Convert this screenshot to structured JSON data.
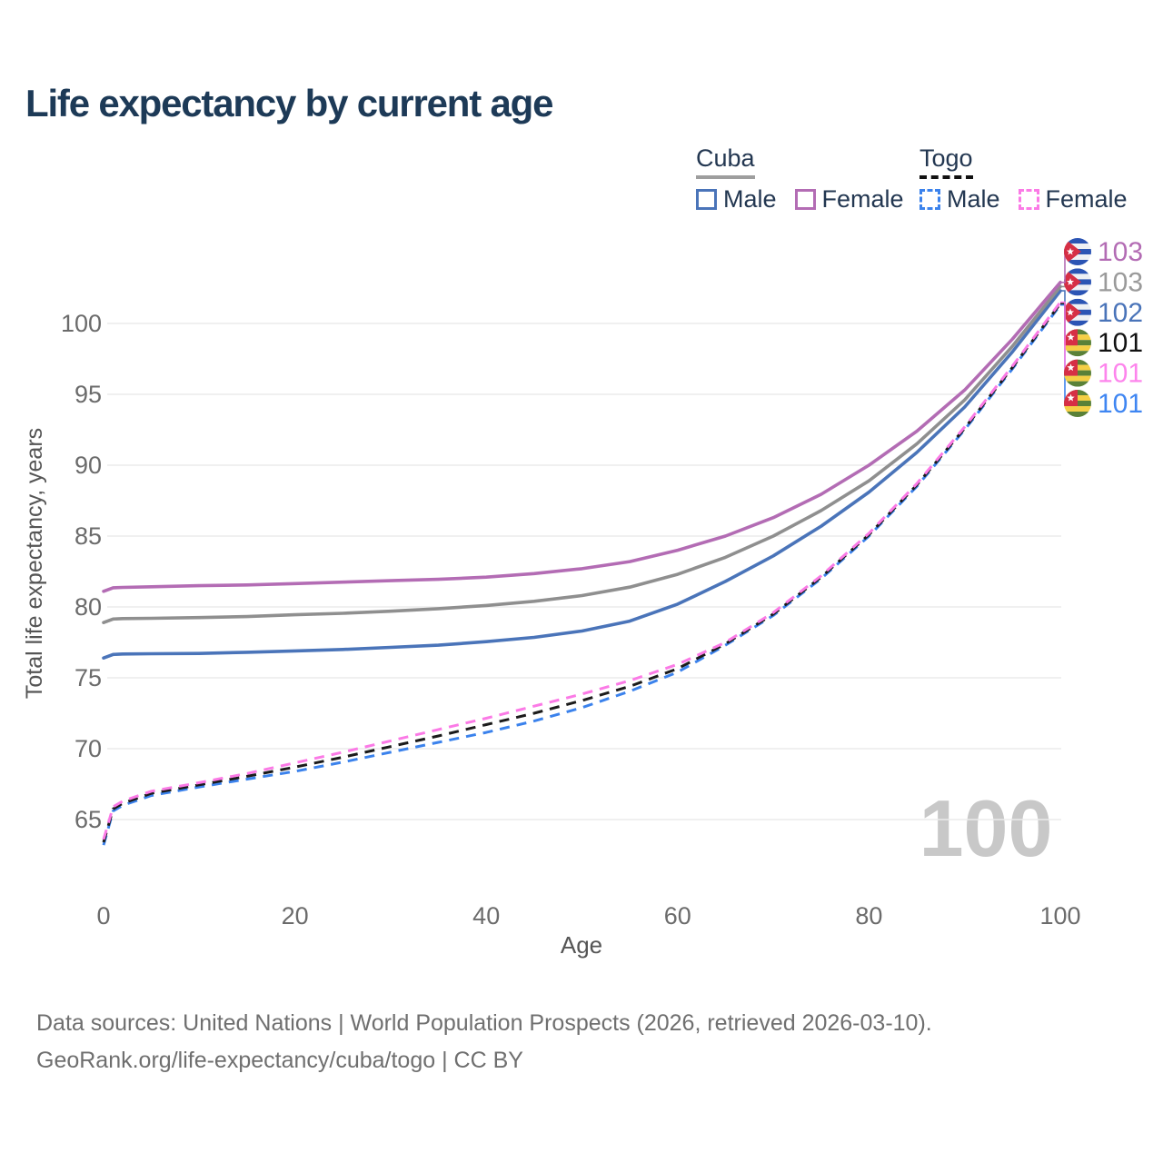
{
  "title": "Life expectancy by current age",
  "watermark": "100",
  "legend": {
    "groups": [
      {
        "label": "Cuba",
        "style": "solid",
        "underline_color": "#9e9e9e",
        "items": [
          {
            "label": "Male",
            "color": "#4a74b9",
            "dashed": false
          },
          {
            "label": "Female",
            "color": "#b36cb4",
            "dashed": false
          }
        ]
      },
      {
        "label": "Togo",
        "style": "dashed",
        "underline_color": "#111111",
        "items": [
          {
            "label": "Male",
            "color": "#3b82ec",
            "dashed": true
          },
          {
            "label": "Female",
            "color": "#fb7ae6",
            "dashed": true
          }
        ]
      }
    ]
  },
  "footer": {
    "line1": "Data sources: United Nations | World Population Prospects (2026, retrieved 2026-03-10).",
    "line2": "GeoRank.org/life-expectancy/cuba/togo | CC BY"
  },
  "chart_data": {
    "type": "line",
    "title": "Life expectancy by current age",
    "xlabel": "Age",
    "ylabel": "Total life expectancy, years",
    "xlim": [
      0,
      100
    ],
    "ylim": [
      62,
      104
    ],
    "x_ticks": [
      0,
      20,
      40,
      60,
      80,
      100
    ],
    "y_ticks": [
      65,
      70,
      75,
      80,
      85,
      90,
      95,
      100
    ],
    "grid": "horizontal",
    "legend_position": "top-right",
    "colors": {
      "grid": "#ebebeb",
      "axis": "#6b6b6b",
      "axis_title": "#555555",
      "watermark": "#c8c8c8"
    },
    "flag_colors": {
      "cuba": {
        "stripe_a": "#2b54b4",
        "stripe_b": "#eef0f4",
        "triangle": "#d62f45",
        "star": "#ffffff"
      },
      "togo": {
        "stripe_a": "#5a8138",
        "stripe_b": "#f4cf45",
        "canton": "#d62f45",
        "star": "#ffffff"
      }
    },
    "ages": [
      0,
      1,
      2,
      5,
      10,
      15,
      20,
      25,
      30,
      35,
      40,
      45,
      50,
      55,
      60,
      65,
      70,
      75,
      80,
      85,
      90,
      95,
      100
    ],
    "series": [
      {
        "key": "cuba_male",
        "country": "Cuba",
        "sex": "Male",
        "color": "#4a74b9",
        "dash": false,
        "flag": "cuba",
        "row": 2,
        "end_label": "102",
        "label_color": "#4a74b9",
        "values": [
          76.4,
          76.65,
          76.68,
          76.7,
          76.72,
          76.8,
          76.9,
          77.0,
          77.15,
          77.3,
          77.55,
          77.85,
          78.3,
          79.0,
          80.2,
          81.8,
          83.6,
          85.7,
          88.1,
          90.9,
          94.1,
          98.0,
          102.3
        ]
      },
      {
        "key": "cuba_all",
        "country": "Cuba",
        "sex": "Both sexes",
        "color": "#8f8f8f",
        "dash": false,
        "flag": "cuba",
        "row": 1,
        "end_label": "103",
        "label_color": "#9a9a9a",
        "values": [
          78.9,
          79.15,
          79.18,
          79.2,
          79.25,
          79.32,
          79.45,
          79.55,
          79.7,
          79.88,
          80.1,
          80.4,
          80.8,
          81.4,
          82.3,
          83.5,
          85.0,
          86.8,
          88.9,
          91.5,
          94.6,
          98.4,
          102.6
        ]
      },
      {
        "key": "cuba_female",
        "country": "Cuba",
        "sex": "Female",
        "color": "#b36cb4",
        "dash": false,
        "flag": "cuba",
        "row": 0,
        "end_label": "103",
        "label_color": "#b36cb4",
        "values": [
          81.1,
          81.35,
          81.38,
          81.42,
          81.5,
          81.55,
          81.65,
          81.75,
          81.85,
          81.95,
          82.1,
          82.35,
          82.7,
          83.2,
          84.0,
          85.0,
          86.3,
          87.95,
          90.0,
          92.4,
          95.3,
          98.9,
          102.9
        ]
      },
      {
        "key": "togo_male",
        "country": "Togo",
        "sex": "Male",
        "color": "#3b82ec",
        "dash": true,
        "flag": "togo",
        "row": 5,
        "end_label": "101",
        "label_color": "#3f86f2",
        "values": [
          63.2,
          65.6,
          66.0,
          66.7,
          67.3,
          67.85,
          68.4,
          69.05,
          69.75,
          70.45,
          71.15,
          71.95,
          72.9,
          74.05,
          75.4,
          77.3,
          79.4,
          82.0,
          85.0,
          88.5,
          92.5,
          96.8,
          101.3
        ]
      },
      {
        "key": "togo_all",
        "country": "Togo",
        "sex": "Both sexes",
        "color": "#1b1b1b",
        "dash": true,
        "flag": "togo",
        "row": 3,
        "end_label": "101",
        "label_color": "#111111",
        "values": [
          63.4,
          65.75,
          66.15,
          66.85,
          67.45,
          68.05,
          68.7,
          69.4,
          70.15,
          70.9,
          71.7,
          72.5,
          73.4,
          74.4,
          75.65,
          77.4,
          79.5,
          82.1,
          85.1,
          88.6,
          92.6,
          96.9,
          101.4
        ]
      },
      {
        "key": "togo_female",
        "country": "Togo",
        "sex": "Female",
        "color": "#fb7ae6",
        "dash": true,
        "flag": "togo",
        "row": 4,
        "end_label": "101",
        "label_color": "#fd85ec",
        "values": [
          63.6,
          65.9,
          66.3,
          67.0,
          67.6,
          68.25,
          69.0,
          69.75,
          70.55,
          71.35,
          72.15,
          73.0,
          73.85,
          74.8,
          75.95,
          77.5,
          79.6,
          82.2,
          85.2,
          88.7,
          92.7,
          97.0,
          101.5
        ]
      }
    ]
  }
}
